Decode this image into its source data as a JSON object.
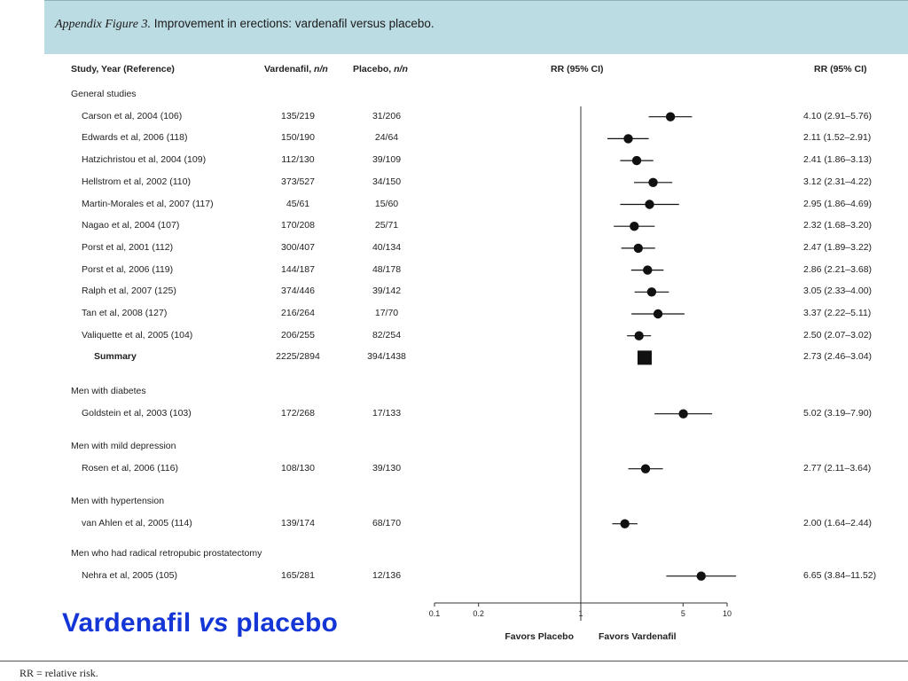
{
  "figure": {
    "lead": "Appendix Figure 3.",
    "title": "Improvement in erections: vardenafil versus placebo."
  },
  "columns": {
    "study": "Study, Year (Reference)",
    "vardenafil": "Vardenafil, n/n",
    "placebo": "Placebo, n/n",
    "plot": "RR (95% CI)",
    "rr": "RR (95% CI)"
  },
  "groups": [
    {
      "label": "General studies",
      "studies": [
        {
          "name": "Carson et al, 2004 (106)",
          "vardenafil": "135/219",
          "placebo": "31/206",
          "rr_text": "4.10 (2.91–5.76)"
        },
        {
          "name": "Edwards et al, 2006 (118)",
          "vardenafil": "150/190",
          "placebo": "24/64",
          "rr_text": "2.11 (1.52–2.91)"
        },
        {
          "name": "Hatzichristou et al, 2004 (109)",
          "vardenafil": "112/130",
          "placebo": "39/109",
          "rr_text": "2.41 (1.86–3.13)"
        },
        {
          "name": "Hellstrom et al, 2002 (110)",
          "vardenafil": "373/527",
          "placebo": "34/150",
          "rr_text": "3.12 (2.31–4.22)"
        },
        {
          "name": "Martin-Morales et al, 2007 (117)",
          "vardenafil": "45/61",
          "placebo": "15/60",
          "rr_text": "2.95 (1.86–4.69)"
        },
        {
          "name": "Nagao et al, 2004 (107)",
          "vardenafil": "170/208",
          "placebo": "25/71",
          "rr_text": "2.32 (1.68–3.20)"
        },
        {
          "name": "Porst et al, 2001 (112)",
          "vardenafil": "300/407",
          "placebo": "40/134",
          "rr_text": "2.47 (1.89–3.22)"
        },
        {
          "name": "Porst et al, 2006 (119)",
          "vardenafil": "144/187",
          "placebo": "48/178",
          "rr_text": "2.86 (2.21–3.68)"
        },
        {
          "name": "Ralph et al, 2007 (125)",
          "vardenafil": "374/446",
          "placebo": "39/142",
          "rr_text": "3.05 (2.33–4.00)"
        },
        {
          "name": "Tan et al, 2008 (127)",
          "vardenafil": "216/264",
          "placebo": "17/70",
          "rr_text": "3.37 (2.22–5.11)"
        },
        {
          "name": "Valiquette et al, 2005 (104)",
          "vardenafil": "206/255",
          "placebo": "82/254",
          "rr_text": "2.50 (2.07–3.02)"
        }
      ],
      "summary": {
        "name": "Summary",
        "vardenafil": "2225/2894",
        "placebo": "394/1438",
        "rr_text": "2.73 (2.46–3.04)"
      }
    },
    {
      "label": "Men with diabetes",
      "studies": [
        {
          "name": "Goldstein et al, 2003 (103)",
          "vardenafil": "172/268",
          "placebo": "17/133",
          "rr_text": "5.02 (3.19–7.90)"
        }
      ]
    },
    {
      "label": "Men with mild depression",
      "studies": [
        {
          "name": "Rosen et al, 2006 (116)",
          "vardenafil": "108/130",
          "placebo": "39/130",
          "rr_text": "2.77 (2.11–3.64)"
        }
      ]
    },
    {
      "label": "Men with hypertension",
      "studies": [
        {
          "name": "van Ahlen et al, 2005 (114)",
          "vardenafil": "139/174",
          "placebo": "68/170",
          "rr_text": "2.00 (1.64–2.44)"
        }
      ]
    },
    {
      "label": "Men who had radical retropubic prostatectomy",
      "studies": [
        {
          "name": "Nehra et al, 2005 (105)",
          "vardenafil": "165/281",
          "placebo": "12/136",
          "rr_text": "6.65 (3.84–11.52)"
        }
      ]
    }
  ],
  "axis": {
    "favors_left": "Favors Placebo",
    "favors_right": "Favors Vardenafil"
  },
  "overlay_title": {
    "main": "Vardenafil ",
    "italic": "vs",
    "tail": " placebo"
  },
  "footnote": "RR = relative risk.",
  "colors": {
    "header_band": "#bcdce3",
    "overlay_title": "#1436d6",
    "marker": "#111111"
  },
  "chart_data": {
    "type": "scatter",
    "x_scale": "log",
    "xlim": [
      0.1,
      10
    ],
    "xticks": [
      0.1,
      0.2,
      1,
      5,
      10
    ],
    "xtick_labels": [
      "0.1",
      "0.2",
      "1",
      "5",
      "10"
    ],
    "reference_line": 1,
    "series": [
      {
        "points": [
          {
            "label": "Carson et al, 2004 (106)",
            "rr": 4.1,
            "lo": 2.91,
            "hi": 5.76
          },
          {
            "label": "Edwards et al, 2006 (118)",
            "rr": 2.11,
            "lo": 1.52,
            "hi": 2.91
          },
          {
            "label": "Hatzichristou et al, 2004 (109)",
            "rr": 2.41,
            "lo": 1.86,
            "hi": 3.13
          },
          {
            "label": "Hellstrom et al, 2002 (110)",
            "rr": 3.12,
            "lo": 2.31,
            "hi": 4.22
          },
          {
            "label": "Martin-Morales et al, 2007 (117)",
            "rr": 2.95,
            "lo": 1.86,
            "hi": 4.69
          },
          {
            "label": "Nagao et al, 2004 (107)",
            "rr": 2.32,
            "lo": 1.68,
            "hi": 3.2
          },
          {
            "label": "Porst et al, 2001 (112)",
            "rr": 2.47,
            "lo": 1.89,
            "hi": 3.22
          },
          {
            "label": "Porst et al, 2006 (119)",
            "rr": 2.86,
            "lo": 2.21,
            "hi": 3.68
          },
          {
            "label": "Ralph et al, 2007 (125)",
            "rr": 3.05,
            "lo": 2.33,
            "hi": 4.0
          },
          {
            "label": "Tan et al, 2008 (127)",
            "rr": 3.37,
            "lo": 2.22,
            "hi": 5.11
          },
          {
            "label": "Valiquette et al, 2005 (104)",
            "rr": 2.5,
            "lo": 2.07,
            "hi": 3.02
          },
          {
            "label": "Summary",
            "rr": 2.73,
            "lo": 2.46,
            "hi": 3.04,
            "summary": true
          },
          {
            "label": "Goldstein et al, 2003 (103)",
            "rr": 5.02,
            "lo": 3.19,
            "hi": 7.9
          },
          {
            "label": "Rosen et al, 2006 (116)",
            "rr": 2.77,
            "lo": 2.11,
            "hi": 3.64
          },
          {
            "label": "van Ahlen et al, 2005 (114)",
            "rr": 2.0,
            "lo": 1.64,
            "hi": 2.44
          },
          {
            "label": "Nehra et al, 2005 (105)",
            "rr": 6.65,
            "lo": 3.84,
            "hi": 11.52
          }
        ]
      }
    ]
  }
}
